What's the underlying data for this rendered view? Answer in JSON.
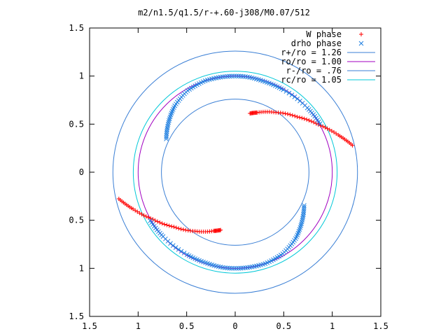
{
  "chart_data": {
    "type": "scatter",
    "title": "m2/n1.5/q1.5/r-+.60-j308/M0.07/512",
    "xlim": [
      -1.5,
      1.5
    ],
    "ylim": [
      -1.5,
      1.5
    ],
    "xticks": [
      "1.5",
      "1",
      "0.5",
      "0",
      "0.5",
      "1",
      "1.5"
    ],
    "yticks": [
      "1.5",
      "1",
      "0.5",
      "0",
      "0.5",
      "1",
      "1.5"
    ],
    "grid": false,
    "legend_position": "top-right",
    "circles": [
      {
        "name": "r+/ro = 1.26",
        "radius": 1.26,
        "color": "#3a7fd5"
      },
      {
        "name": "ro/ro = 1.00",
        "radius": 1.0,
        "color": "#a000c0"
      },
      {
        "name": "r-/ro = .76",
        "radius": 0.76,
        "color": "#3a7fd5"
      },
      {
        "name": "rc/ro = 1.05",
        "radius": 1.05,
        "color": "#00c8d8"
      }
    ],
    "series": [
      {
        "name": "W phase",
        "marker": "+",
        "color": "#ff0000",
        "segments": [
          {
            "r": [
              1.23,
              1.12,
              0.98,
              0.85,
              0.74,
              0.65,
              0.62
            ],
            "theta_deg": [
              193,
              200,
              210,
              222,
              236,
              250,
              256
            ]
          },
          {
            "r": [
              1.24,
              1.13,
              0.99,
              0.86,
              0.75,
              0.66,
              0.63
            ],
            "theta_deg": [
              13,
              20,
              30,
              42,
              56,
              70,
              76
            ]
          }
        ]
      },
      {
        "name": "drho phase",
        "marker": "x",
        "color": "#1f7fe0",
        "segments": [
          {
            "r": [
              0.79,
              0.86,
              0.93,
              0.98,
              1.0,
              1.0,
              1.0,
              0.99,
              0.99,
              1.0,
              1.01
            ],
            "theta_deg": [
              154,
              143,
              132,
              120,
              108,
              96,
              84,
              72,
              60,
              42,
              30
            ]
          },
          {
            "r": [
              0.79,
              0.86,
              0.93,
              0.98,
              1.0,
              1.0,
              1.0,
              0.99,
              0.99,
              1.0,
              1.01
            ],
            "theta_deg": [
              334,
              323,
              312,
              300,
              288,
              276,
              264,
              252,
              240,
              222,
              210
            ]
          }
        ]
      }
    ]
  }
}
